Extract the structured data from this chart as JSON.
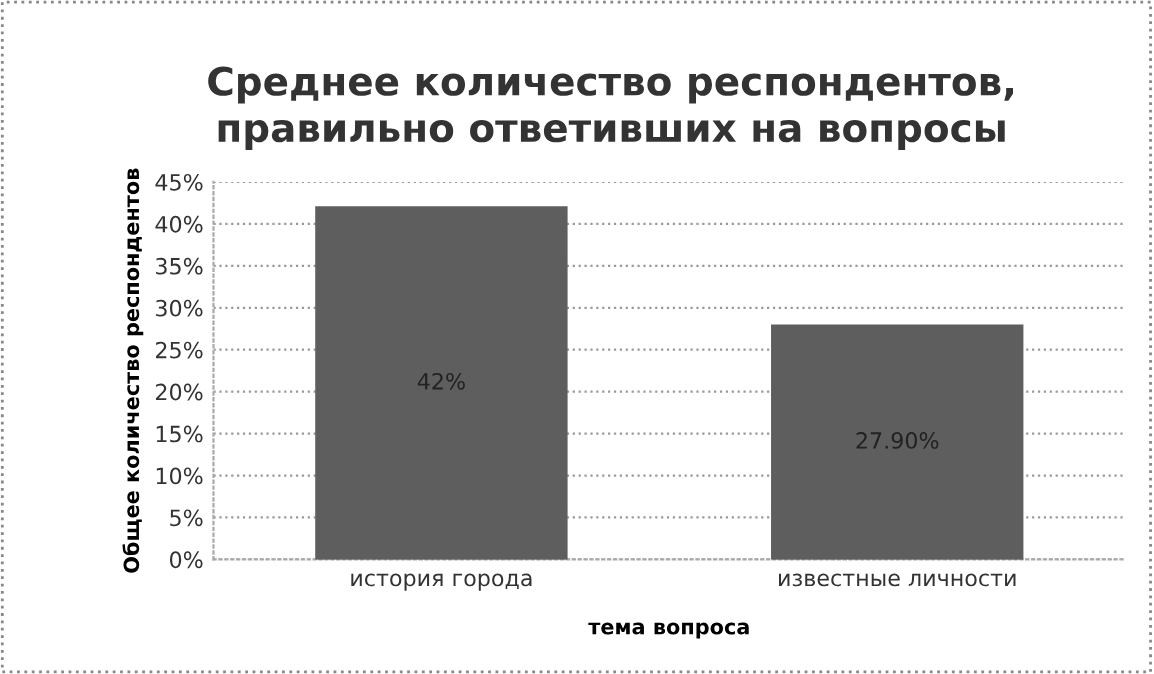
{
  "chart_data": {
    "type": "bar",
    "title": "Среднее количество респондентов,\nправильно ответивших на вопросы",
    "xlabel": "тема вопроса",
    "ylabel": "Общее количество респондентов",
    "categories": [
      "история города",
      "известные личности"
    ],
    "values": [
      42,
      27.9
    ],
    "value_labels": [
      "42%",
      "27.90%"
    ],
    "color": "#5e5e5e",
    "ylim": [
      0,
      45
    ],
    "yticks": [
      {
        "value": 0,
        "label": "0%"
      },
      {
        "value": 5,
        "label": "5%"
      },
      {
        "value": 10,
        "label": "10%"
      },
      {
        "value": 15,
        "label": "15%"
      },
      {
        "value": 20,
        "label": "20%"
      },
      {
        "value": 25,
        "label": "25%"
      },
      {
        "value": 30,
        "label": "30%"
      },
      {
        "value": 35,
        "label": "35%"
      },
      {
        "value": 40,
        "label": "40%"
      },
      {
        "value": 45,
        "label": "45%"
      }
    ],
    "grid": "y",
    "legend": false
  }
}
